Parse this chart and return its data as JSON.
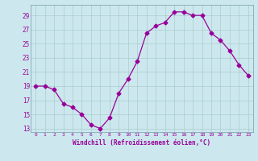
{
  "x": [
    0,
    1,
    2,
    3,
    4,
    5,
    6,
    7,
    8,
    9,
    10,
    11,
    12,
    13,
    14,
    15,
    16,
    17,
    18,
    19,
    20,
    21,
    22,
    23
  ],
  "y": [
    19,
    19,
    18.5,
    16.5,
    16,
    15,
    13.5,
    13,
    14.5,
    18,
    20,
    22.5,
    26.5,
    27.5,
    28,
    29.5,
    29.5,
    29,
    29,
    26.5,
    25.5,
    24,
    22,
    20.5
  ],
  "line_color": "#990099",
  "marker": "D",
  "marker_size": 2.5,
  "bg_color": "#cce8ee",
  "grid_color": "#aacccc",
  "xlabel": "Windchill (Refroidissement éolien,°C)",
  "yticks": [
    13,
    15,
    17,
    19,
    21,
    23,
    25,
    27,
    29
  ],
  "xticks": [
    0,
    1,
    2,
    3,
    4,
    5,
    6,
    7,
    8,
    9,
    10,
    11,
    12,
    13,
    14,
    15,
    16,
    17,
    18,
    19,
    20,
    21,
    22,
    23
  ],
  "ylim": [
    12.5,
    30.5
  ],
  "xlim": [
    -0.5,
    23.5
  ]
}
